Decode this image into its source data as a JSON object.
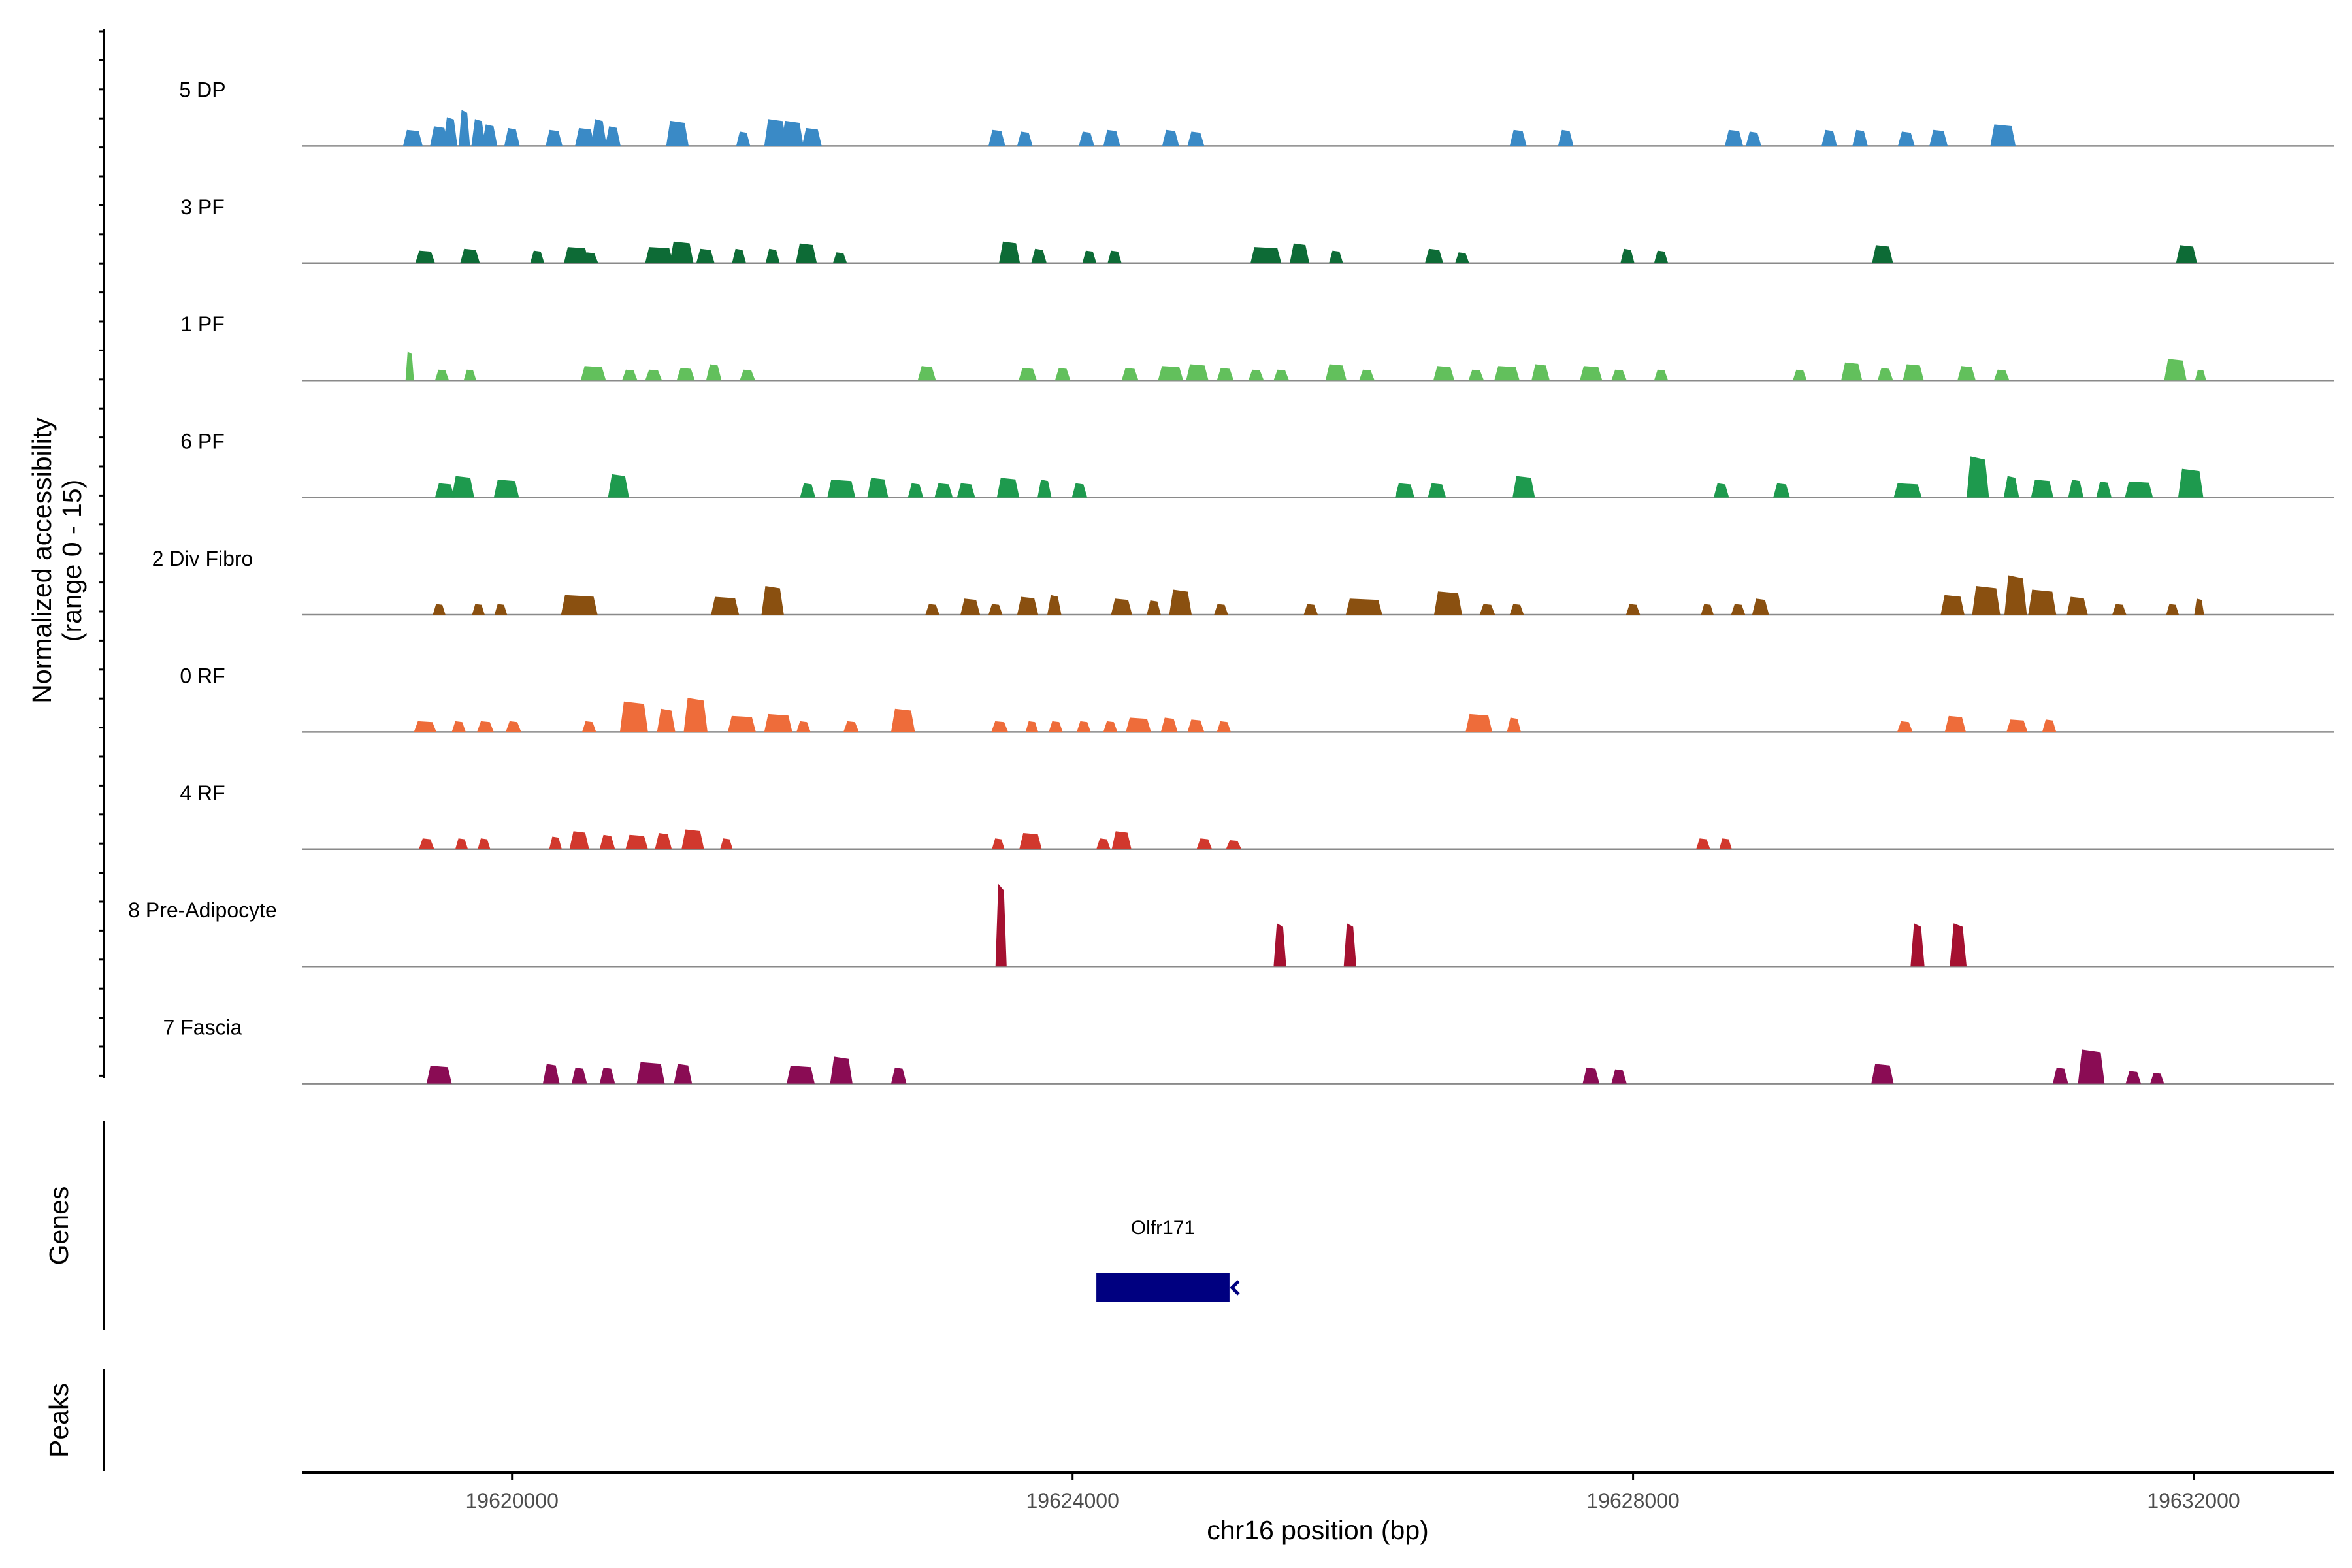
{
  "chart_data": {
    "type": "area",
    "x_axis": {
      "label": "chr16 position (bp)",
      "ticks": [
        19620000,
        19624000,
        19628000,
        19632000
      ],
      "range": [
        19618500,
        19633000
      ]
    },
    "y_axis": {
      "label_line1": "Normalized accessibility",
      "label_line2": "(range 0 - 15)",
      "range": [
        0,
        15
      ]
    },
    "tracks": [
      {
        "name": "5 DP",
        "color": "#3a8ac6",
        "peaks": [
          [
            19619292,
            0.9,
            140
          ],
          [
            19619480,
            1.1,
            130
          ],
          [
            19619560,
            1.6,
            100
          ],
          [
            19619660,
            2.0,
            80
          ],
          [
            19619760,
            1.5,
            100
          ],
          [
            19619840,
            1.2,
            110
          ],
          [
            19620000,
            1.0,
            110
          ],
          [
            19620300,
            0.9,
            120
          ],
          [
            19620520,
            1.0,
            140
          ],
          [
            19620620,
            1.5,
            110
          ],
          [
            19620720,
            1.1,
            110
          ],
          [
            19621180,
            1.4,
            160
          ],
          [
            19621650,
            0.8,
            100
          ],
          [
            19621880,
            1.5,
            160
          ],
          [
            19622000,
            1.4,
            160
          ],
          [
            19622140,
            1.0,
            140
          ],
          [
            19623460,
            0.9,
            120
          ],
          [
            19623660,
            0.8,
            110
          ],
          [
            19624100,
            0.8,
            110
          ],
          [
            19624280,
            0.9,
            120
          ],
          [
            19624700,
            0.9,
            120
          ],
          [
            19624880,
            0.8,
            120
          ],
          [
            19627180,
            0.9,
            120
          ],
          [
            19627520,
            0.9,
            110
          ],
          [
            19628720,
            0.9,
            130
          ],
          [
            19628860,
            0.8,
            110
          ],
          [
            19629400,
            0.9,
            110
          ],
          [
            19629620,
            0.9,
            110
          ],
          [
            19629950,
            0.8,
            120
          ],
          [
            19630180,
            0.9,
            130
          ],
          [
            19630640,
            1.2,
            180
          ]
        ]
      },
      {
        "name": "3 PF",
        "color": "#0d6b36",
        "peaks": [
          [
            19619380,
            0.7,
            140
          ],
          [
            19619700,
            0.8,
            140
          ],
          [
            19620180,
            0.7,
            100
          ],
          [
            19620460,
            0.9,
            180
          ],
          [
            19620560,
            0.6,
            110
          ],
          [
            19621050,
            0.9,
            200
          ],
          [
            19621210,
            1.2,
            170
          ],
          [
            19621380,
            0.8,
            130
          ],
          [
            19621620,
            0.8,
            100
          ],
          [
            19621860,
            0.8,
            100
          ],
          [
            19622100,
            1.1,
            150
          ],
          [
            19622340,
            0.6,
            100
          ],
          [
            19623550,
            1.2,
            150
          ],
          [
            19623760,
            0.8,
            110
          ],
          [
            19624120,
            0.7,
            100
          ],
          [
            19624300,
            0.7,
            100
          ],
          [
            19625380,
            0.9,
            220
          ],
          [
            19625620,
            1.1,
            140
          ],
          [
            19625880,
            0.7,
            100
          ],
          [
            19626580,
            0.8,
            130
          ],
          [
            19626780,
            0.6,
            100
          ],
          [
            19627960,
            0.8,
            100
          ],
          [
            19628200,
            0.7,
            100
          ],
          [
            19629780,
            1.0,
            150
          ],
          [
            19631950,
            1.0,
            150
          ]
        ]
      },
      {
        "name": "1 PF",
        "color": "#62c05c",
        "peaks": [
          [
            19619270,
            1.6,
            60
          ],
          [
            19619500,
            0.6,
            100
          ],
          [
            19619700,
            0.6,
            90
          ],
          [
            19620580,
            0.8,
            180
          ],
          [
            19620840,
            0.6,
            110
          ],
          [
            19621010,
            0.6,
            120
          ],
          [
            19621240,
            0.7,
            130
          ],
          [
            19621440,
            0.9,
            110
          ],
          [
            19621680,
            0.6,
            110
          ],
          [
            19622960,
            0.8,
            130
          ],
          [
            19623680,
            0.7,
            130
          ],
          [
            19623930,
            0.7,
            110
          ],
          [
            19624410,
            0.7,
            120
          ],
          [
            19624700,
            0.8,
            180
          ],
          [
            19624890,
            0.9,
            160
          ],
          [
            19625090,
            0.7,
            120
          ],
          [
            19625310,
            0.6,
            110
          ],
          [
            19625490,
            0.6,
            110
          ],
          [
            19625880,
            0.9,
            150
          ],
          [
            19626100,
            0.6,
            110
          ],
          [
            19626650,
            0.8,
            150
          ],
          [
            19626880,
            0.6,
            110
          ],
          [
            19627100,
            0.8,
            180
          ],
          [
            19627340,
            0.9,
            130
          ],
          [
            19627700,
            0.8,
            160
          ],
          [
            19627900,
            0.6,
            110
          ],
          [
            19628200,
            0.6,
            100
          ],
          [
            19629190,
            0.6,
            100
          ],
          [
            19629560,
            1.0,
            150
          ],
          [
            19629800,
            0.7,
            110
          ],
          [
            19630000,
            0.9,
            150
          ],
          [
            19630380,
            0.8,
            130
          ],
          [
            19630630,
            0.6,
            110
          ],
          [
            19631870,
            1.2,
            160
          ],
          [
            19632050,
            0.6,
            80
          ]
        ]
      },
      {
        "name": "6 PF",
        "color": "#1e9a4e",
        "peaks": [
          [
            19619520,
            0.8,
            140
          ],
          [
            19619650,
            1.2,
            160
          ],
          [
            19619960,
            1.0,
            180
          ],
          [
            19620760,
            1.3,
            150
          ],
          [
            19622110,
            0.8,
            110
          ],
          [
            19622350,
            1.0,
            200
          ],
          [
            19622610,
            1.1,
            150
          ],
          [
            19622880,
            0.8,
            110
          ],
          [
            19623080,
            0.8,
            130
          ],
          [
            19623240,
            0.8,
            130
          ],
          [
            19623540,
            1.1,
            160
          ],
          [
            19623800,
            1.0,
            100
          ],
          [
            19624050,
            0.8,
            110
          ],
          [
            19626370,
            0.8,
            140
          ],
          [
            19626600,
            0.8,
            130
          ],
          [
            19627220,
            1.2,
            160
          ],
          [
            19628630,
            0.8,
            110
          ],
          [
            19629060,
            0.8,
            120
          ],
          [
            19629960,
            0.8,
            200
          ],
          [
            19630460,
            2.3,
            160
          ],
          [
            19630700,
            1.2,
            110
          ],
          [
            19630920,
            1.0,
            160
          ],
          [
            19631160,
            1.0,
            110
          ],
          [
            19631360,
            0.9,
            110
          ],
          [
            19631610,
            0.9,
            200
          ],
          [
            19631980,
            1.6,
            180
          ]
        ]
      },
      {
        "name": "2 Div Fibro",
        "color": "#8a5010",
        "peaks": [
          [
            19619480,
            0.6,
            90
          ],
          [
            19619760,
            0.6,
            90
          ],
          [
            19619920,
            0.6,
            90
          ],
          [
            19620480,
            1.1,
            260
          ],
          [
            19621520,
            1.0,
            200
          ],
          [
            19621860,
            1.6,
            160
          ],
          [
            19623000,
            0.6,
            100
          ],
          [
            19623270,
            0.9,
            140
          ],
          [
            19623450,
            0.6,
            100
          ],
          [
            19623680,
            1.0,
            150
          ],
          [
            19623870,
            1.1,
            100
          ],
          [
            19624350,
            0.9,
            150
          ],
          [
            19624580,
            0.8,
            100
          ],
          [
            19624770,
            1.4,
            160
          ],
          [
            19625060,
            0.6,
            100
          ],
          [
            19625700,
            0.6,
            100
          ],
          [
            19626080,
            0.9,
            260
          ],
          [
            19626680,
            1.3,
            200
          ],
          [
            19626960,
            0.6,
            110
          ],
          [
            19627170,
            0.6,
            100
          ],
          [
            19628000,
            0.6,
            100
          ],
          [
            19628530,
            0.6,
            90
          ],
          [
            19628750,
            0.6,
            100
          ],
          [
            19628910,
            0.9,
            120
          ],
          [
            19630280,
            1.1,
            170
          ],
          [
            19630520,
            1.6,
            200
          ],
          [
            19630730,
            2.2,
            160
          ],
          [
            19630920,
            1.4,
            200
          ],
          [
            19631170,
            1.0,
            150
          ],
          [
            19631470,
            0.6,
            100
          ],
          [
            19631850,
            0.6,
            90
          ],
          [
            19632040,
            0.9,
            70
          ]
        ]
      },
      {
        "name": "0 RF",
        "color": "#ee6c3a",
        "peaks": [
          [
            19619380,
            0.6,
            160
          ],
          [
            19619620,
            0.6,
            100
          ],
          [
            19619810,
            0.6,
            120
          ],
          [
            19620010,
            0.6,
            110
          ],
          [
            19620550,
            0.6,
            100
          ],
          [
            19620870,
            1.7,
            200
          ],
          [
            19621100,
            1.3,
            130
          ],
          [
            19621310,
            1.9,
            170
          ],
          [
            19621640,
            0.9,
            200
          ],
          [
            19621900,
            1.0,
            200
          ],
          [
            19622080,
            0.6,
            100
          ],
          [
            19622420,
            0.6,
            110
          ],
          [
            19622790,
            1.3,
            170
          ],
          [
            19623480,
            0.6,
            120
          ],
          [
            19623710,
            0.6,
            90
          ],
          [
            19623880,
            0.6,
            100
          ],
          [
            19624080,
            0.6,
            100
          ],
          [
            19624270,
            0.6,
            100
          ],
          [
            19624470,
            0.8,
            180
          ],
          [
            19624690,
            0.8,
            120
          ],
          [
            19624880,
            0.7,
            120
          ],
          [
            19625080,
            0.6,
            100
          ],
          [
            19626900,
            1.0,
            190
          ],
          [
            19627150,
            0.8,
            100
          ],
          [
            19629940,
            0.6,
            110
          ],
          [
            19630300,
            0.9,
            150
          ],
          [
            19630740,
            0.7,
            150
          ],
          [
            19630970,
            0.7,
            100
          ]
        ]
      },
      {
        "name": "4 RF",
        "color": "#d1382d",
        "peaks": [
          [
            19619390,
            0.6,
            110
          ],
          [
            19619640,
            0.6,
            90
          ],
          [
            19619800,
            0.6,
            90
          ],
          [
            19620310,
            0.7,
            90
          ],
          [
            19620480,
            1.0,
            140
          ],
          [
            19620680,
            0.8,
            110
          ],
          [
            19620890,
            0.8,
            160
          ],
          [
            19621080,
            0.9,
            120
          ],
          [
            19621290,
            1.1,
            160
          ],
          [
            19621530,
            0.6,
            90
          ],
          [
            19623470,
            0.6,
            90
          ],
          [
            19623700,
            0.9,
            160
          ],
          [
            19624220,
            0.6,
            100
          ],
          [
            19624350,
            1.0,
            140
          ],
          [
            19624940,
            0.6,
            110
          ],
          [
            19625150,
            0.5,
            110
          ],
          [
            19628500,
            0.6,
            100
          ],
          [
            19628660,
            0.6,
            90
          ]
        ]
      },
      {
        "name": "8 Pre-Adipocyte",
        "color": "#a51130",
        "peaks": [
          [
            19623490,
            4.6,
            80
          ],
          [
            19625480,
            2.4,
            90
          ],
          [
            19625980,
            2.4,
            90
          ],
          [
            19630030,
            2.4,
            100
          ],
          [
            19630320,
            2.4,
            120
          ]
        ]
      },
      {
        "name": "7 Fascia",
        "color": "#8a0c54",
        "peaks": [
          [
            19619480,
            1.0,
            180
          ],
          [
            19620280,
            1.1,
            120
          ],
          [
            19620480,
            0.9,
            110
          ],
          [
            19620680,
            0.9,
            110
          ],
          [
            19620990,
            1.2,
            200
          ],
          [
            19621220,
            1.1,
            130
          ],
          [
            19622060,
            1.0,
            200
          ],
          [
            19622350,
            1.5,
            160
          ],
          [
            19622760,
            0.9,
            110
          ],
          [
            19627700,
            0.9,
            120
          ],
          [
            19627900,
            0.8,
            110
          ],
          [
            19629780,
            1.1,
            160
          ],
          [
            19631050,
            0.9,
            110
          ],
          [
            19631270,
            1.9,
            190
          ],
          [
            19631570,
            0.7,
            110
          ],
          [
            19631740,
            0.6,
            100
          ]
        ]
      }
    ],
    "genes_panel": {
      "ylabel": "Genes",
      "gene": {
        "name": "Olfr171",
        "start": 19624170,
        "end": 19625120,
        "strand": "-",
        "color": "#000080"
      }
    },
    "peaks_panel": {
      "ylabel": "Peaks"
    },
    "grid": false,
    "legend": "none"
  }
}
